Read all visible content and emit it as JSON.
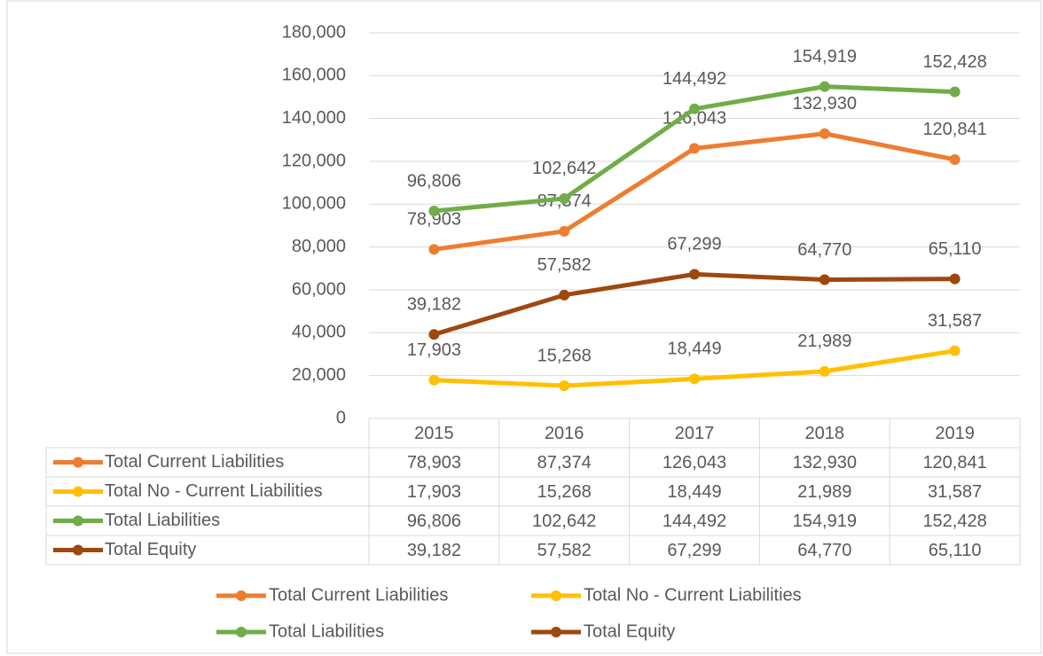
{
  "chart_data": {
    "type": "line",
    "categories": [
      "2015",
      "2016",
      "2017",
      "2018",
      "2019"
    ],
    "series": [
      {
        "name": "Total Current Liabilities",
        "color": "#ed7d31",
        "values": [
          78903,
          87374,
          126043,
          132930,
          120841
        ],
        "value_labels": [
          "78,903",
          "87,374",
          "126,043",
          "132,930",
          "120,841"
        ]
      },
      {
        "name": "Total No - Current Liabilities",
        "color": "#ffc000",
        "values": [
          17903,
          15268,
          18449,
          21989,
          31587
        ],
        "value_labels": [
          "17,903",
          "15,268",
          "18,449",
          "21,989",
          "31,587"
        ]
      },
      {
        "name": "Total Liabilities",
        "color": "#70ad47",
        "values": [
          96806,
          102642,
          144492,
          154919,
          152428
        ],
        "value_labels": [
          "96,806",
          "102,642",
          "144,492",
          "154,919",
          "152,428"
        ]
      },
      {
        "name": "Total Equity",
        "color": "#9e480e",
        "values": [
          39182,
          57582,
          67299,
          64770,
          65110
        ],
        "value_labels": [
          "39,182",
          "57,582",
          "67,299",
          "64,770",
          "65,110"
        ]
      }
    ],
    "ylim": [
      0,
      180000
    ],
    "yticks": [
      0,
      {
        "value": 20000,
        "label": "20,000"
      },
      {
        "value": 40000,
        "label": "40,000"
      },
      {
        "value": 60000,
        "label": "60,000"
      },
      {
        "value": 80000,
        "label": "80,000"
      },
      {
        "value": 100000,
        "label": "100,000"
      },
      {
        "value": 120000,
        "label": "120,000"
      },
      {
        "value": 140000,
        "label": "140,000"
      },
      {
        "value": 160000,
        "label": "160,000"
      },
      {
        "value": 180000,
        "label": "180,000"
      }
    ],
    "grid": true,
    "legend": "bottom"
  }
}
